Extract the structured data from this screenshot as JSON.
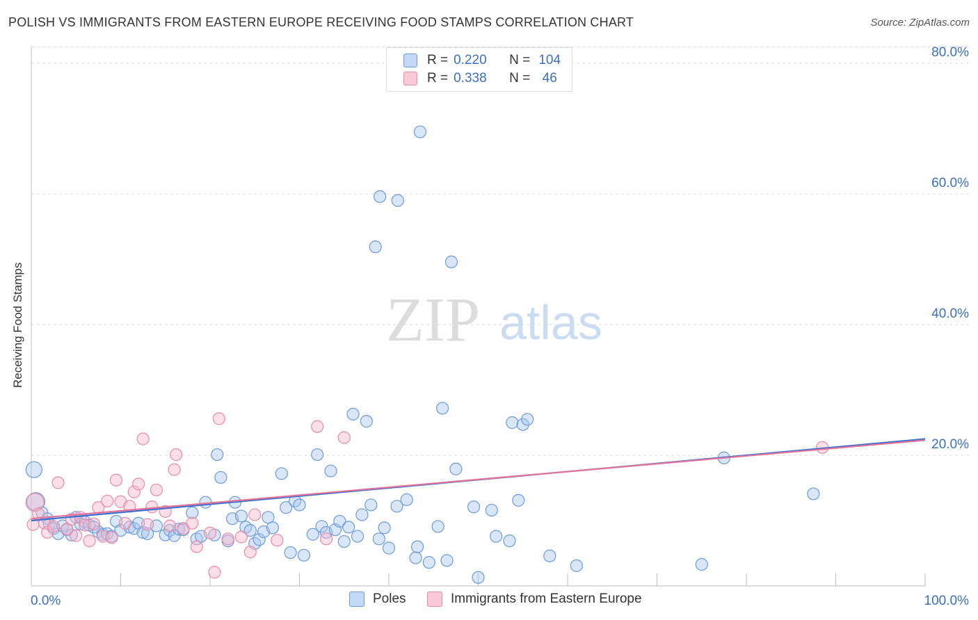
{
  "header": {
    "title": "POLISH VS IMMIGRANTS FROM EASTERN EUROPE RECEIVING FOOD STAMPS CORRELATION CHART",
    "source": "Source: ZipAtlas.com"
  },
  "watermark": {
    "zip": "ZIP",
    "atlas": "atlas"
  },
  "colors": {
    "poles_fill": "#a9c8f0",
    "poles_stroke": "#6b9ad8",
    "poles_line": "#3a6fd0",
    "immigrants_fill": "#f7b9cc",
    "immigrants_stroke": "#e88aa8",
    "immigrants_line": "#e0749a",
    "value_text": "#3a6fc4"
  },
  "legend_top": {
    "rows": [
      {
        "r_label": "R =",
        "r_value": "0.220",
        "n_label": "N =",
        "n_value": "104",
        "series": "poles"
      },
      {
        "r_label": "R =",
        "r_value": "0.338",
        "n_label": "N =",
        "n_value": "46",
        "series": "immigrants"
      }
    ]
  },
  "legend_bottom": {
    "items": [
      {
        "label": "Poles",
        "series": "poles"
      },
      {
        "label": "Immigrants from Eastern Europe",
        "series": "immigrants"
      }
    ]
  },
  "chart_data": {
    "type": "scatter",
    "title": "POLISH VS IMMIGRANTS FROM EASTERN EUROPE RECEIVING FOOD STAMPS CORRELATION CHART",
    "xlabel": "",
    "ylabel": "Receiving Food Stamps",
    "xlim": [
      0,
      100
    ],
    "ylim": [
      0,
      82
    ],
    "x_tick_labels": [
      {
        "value": 0,
        "label": "0.0%"
      },
      {
        "value": 100,
        "label": "100.0%"
      }
    ],
    "y_tick_labels": [
      {
        "value": 20,
        "label": "20.0%"
      },
      {
        "value": 40,
        "label": "40.0%"
      },
      {
        "value": 60,
        "label": "60.0%"
      },
      {
        "value": 80,
        "label": "80.0%"
      }
    ],
    "x_minor_ticks": [
      0,
      10,
      20,
      30,
      40,
      50,
      60,
      70,
      80,
      90,
      100
    ],
    "grid": "horizontal dashed",
    "legend_placement": "bottom",
    "series": [
      {
        "name": "Poles",
        "key": "poles",
        "trend": {
          "x": [
            0,
            100
          ],
          "y": [
            10.0,
            22.5
          ]
        },
        "points": [
          [
            0.3,
            17.8
          ],
          [
            0.5,
            12.9
          ],
          [
            1.2,
            11.2
          ],
          [
            1.8,
            10.3
          ],
          [
            2.0,
            9.5
          ],
          [
            2.5,
            8.8
          ],
          [
            3.0,
            8.0
          ],
          [
            3.5,
            9.2
          ],
          [
            4.0,
            8.6
          ],
          [
            4.5,
            7.8
          ],
          [
            5.0,
            10.5
          ],
          [
            5.5,
            9.5
          ],
          [
            6.0,
            9.8
          ],
          [
            6.5,
            9.3
          ],
          [
            7.0,
            9.0
          ],
          [
            7.5,
            8.3
          ],
          [
            8.0,
            7.9
          ],
          [
            8.5,
            8.0
          ],
          [
            9.0,
            7.6
          ],
          [
            9.5,
            9.9
          ],
          [
            10.0,
            8.5
          ],
          [
            11.0,
            9.0
          ],
          [
            11.5,
            8.8
          ],
          [
            12.0,
            9.6
          ],
          [
            12.5,
            8.2
          ],
          [
            13.0,
            8.0
          ],
          [
            14.0,
            9.2
          ],
          [
            15.0,
            7.8
          ],
          [
            15.5,
            8.5
          ],
          [
            16.0,
            7.7
          ],
          [
            16.5,
            8.7
          ],
          [
            17.0,
            8.6
          ],
          [
            18.0,
            11.2
          ],
          [
            18.5,
            7.2
          ],
          [
            19.0,
            7.6
          ],
          [
            19.5,
            12.8
          ],
          [
            20.5,
            7.8
          ],
          [
            20.8,
            20.1
          ],
          [
            21.2,
            16.6
          ],
          [
            22.0,
            6.9
          ],
          [
            22.5,
            10.3
          ],
          [
            22.8,
            12.8
          ],
          [
            23.5,
            10.7
          ],
          [
            24.0,
            9.0
          ],
          [
            24.5,
            8.5
          ],
          [
            25.0,
            6.5
          ],
          [
            25.5,
            7.1
          ],
          [
            26.0,
            8.3
          ],
          [
            26.5,
            10.5
          ],
          [
            27.0,
            8.9
          ],
          [
            28.0,
            17.2
          ],
          [
            28.5,
            12.0
          ],
          [
            29.0,
            5.1
          ],
          [
            29.5,
            13.0
          ],
          [
            30.0,
            12.4
          ],
          [
            30.5,
            4.7
          ],
          [
            31.5,
            7.9
          ],
          [
            32.0,
            20.1
          ],
          [
            32.5,
            9.1
          ],
          [
            33.0,
            8.2
          ],
          [
            33.5,
            17.6
          ],
          [
            34.0,
            8.6
          ],
          [
            34.5,
            9.9
          ],
          [
            35.0,
            6.8
          ],
          [
            35.5,
            9.0
          ],
          [
            36.0,
            26.3
          ],
          [
            36.5,
            7.6
          ],
          [
            37.0,
            10.9
          ],
          [
            37.5,
            25.2
          ],
          [
            38.0,
            12.4
          ],
          [
            38.5,
            51.9
          ],
          [
            38.9,
            7.2
          ],
          [
            39.0,
            59.6
          ],
          [
            39.5,
            8.9
          ],
          [
            40.0,
            5.8
          ],
          [
            41.0,
            59.0
          ],
          [
            40.9,
            12.2
          ],
          [
            42.0,
            13.2
          ],
          [
            43.0,
            4.3
          ],
          [
            43.2,
            6.0
          ],
          [
            43.5,
            69.5
          ],
          [
            44.5,
            3.6
          ],
          [
            45.5,
            9.1
          ],
          [
            46.0,
            27.2
          ],
          [
            46.5,
            3.9
          ],
          [
            47.0,
            49.6
          ],
          [
            47.5,
            17.9
          ],
          [
            49.5,
            12.1
          ],
          [
            50.0,
            1.3
          ],
          [
            51.5,
            11.6
          ],
          [
            52.0,
            7.6
          ],
          [
            53.5,
            6.9
          ],
          [
            53.8,
            25.0
          ],
          [
            54.5,
            13.1
          ],
          [
            55.0,
            24.7
          ],
          [
            55.5,
            25.5
          ],
          [
            58.0,
            4.6
          ],
          [
            61.0,
            3.1
          ],
          [
            77.5,
            19.6
          ],
          [
            75.0,
            3.3
          ],
          [
            87.5,
            14.1
          ]
        ]
      },
      {
        "name": "Immigrants from Eastern Europe",
        "key": "immigrants",
        "trend": {
          "x": [
            0,
            100
          ],
          "y": [
            10.3,
            22.3
          ]
        },
        "points": [
          [
            0.2,
            9.4
          ],
          [
            0.4,
            12.8
          ],
          [
            0.8,
            11.0
          ],
          [
            1.5,
            9.6
          ],
          [
            1.8,
            8.2
          ],
          [
            2.5,
            9.1
          ],
          [
            3.0,
            15.8
          ],
          [
            4.0,
            8.7
          ],
          [
            4.5,
            10.2
          ],
          [
            5.0,
            7.7
          ],
          [
            5.5,
            10.5
          ],
          [
            6.0,
            9.3
          ],
          [
            6.5,
            6.9
          ],
          [
            7.0,
            9.5
          ],
          [
            7.5,
            12.0
          ],
          [
            8.0,
            7.6
          ],
          [
            8.5,
            13.0
          ],
          [
            9.0,
            7.4
          ],
          [
            9.5,
            16.2
          ],
          [
            10.0,
            12.9
          ],
          [
            10.5,
            9.6
          ],
          [
            11.0,
            12.2
          ],
          [
            11.5,
            14.4
          ],
          [
            12.0,
            15.6
          ],
          [
            12.5,
            22.5
          ],
          [
            13.0,
            9.4
          ],
          [
            13.5,
            12.1
          ],
          [
            14.0,
            14.7
          ],
          [
            15.0,
            11.4
          ],
          [
            15.5,
            9.2
          ],
          [
            16.0,
            17.8
          ],
          [
            16.2,
            20.1
          ],
          [
            17.0,
            8.8
          ],
          [
            18.0,
            9.6
          ],
          [
            18.5,
            6.0
          ],
          [
            20.0,
            8.1
          ],
          [
            20.5,
            2.1
          ],
          [
            21.0,
            25.6
          ],
          [
            22.0,
            7.2
          ],
          [
            23.5,
            7.5
          ],
          [
            24.5,
            5.2
          ],
          [
            25.0,
            10.9
          ],
          [
            27.5,
            7.0
          ],
          [
            32.0,
            24.4
          ],
          [
            33.0,
            7.2
          ],
          [
            35.0,
            22.7
          ],
          [
            88.5,
            21.2
          ]
        ]
      }
    ]
  }
}
